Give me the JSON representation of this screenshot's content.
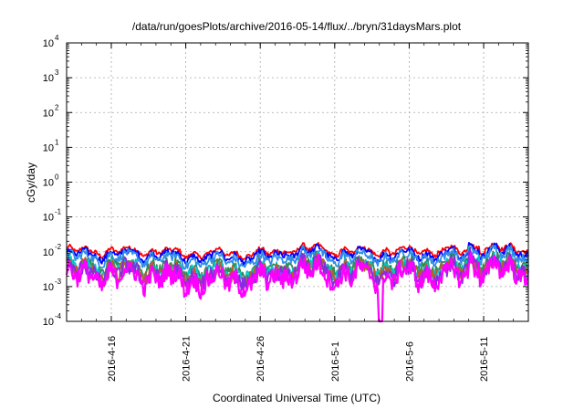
{
  "chart_data": {
    "type": "line",
    "title": "/data/run/goesPlots/archive/2016-05-14/flux/../bryn/31daysMars.plot",
    "xlabel": "Coordinated Universal Time (UTC)",
    "ylabel": "cGy/day",
    "yscale": "log",
    "ylim_exp": [
      -4,
      4
    ],
    "ytick_exponents": [
      "-4",
      "-3",
      "-2",
      "-1",
      "0",
      "1",
      "2",
      "3",
      "4"
    ],
    "ytick_base": "10",
    "x_range": [
      "2016-04-13",
      "2016-05-14"
    ],
    "xticks": [
      "2016-4-16",
      "2016-4-21",
      "2016-4-26",
      "2016-5-1",
      "2016-5-6",
      "2016-5-11"
    ],
    "grid": true,
    "series": [
      {
        "color": "#ff0000",
        "base": 0.0105
      },
      {
        "color": "#0000ff",
        "base": 0.0085
      },
      {
        "color": "#2f8fe8",
        "base": 0.0068
      },
      {
        "color": "#2e8b57",
        "base": 0.004
      },
      {
        "color": "#00c8c8",
        "base": 0.0034
      },
      {
        "color": "#b06030",
        "base": 0.0028
      },
      {
        "color": "#8a2be2",
        "base": 0.0025
      },
      {
        "color": "#ff00ff",
        "base": 0.002
      }
    ]
  }
}
